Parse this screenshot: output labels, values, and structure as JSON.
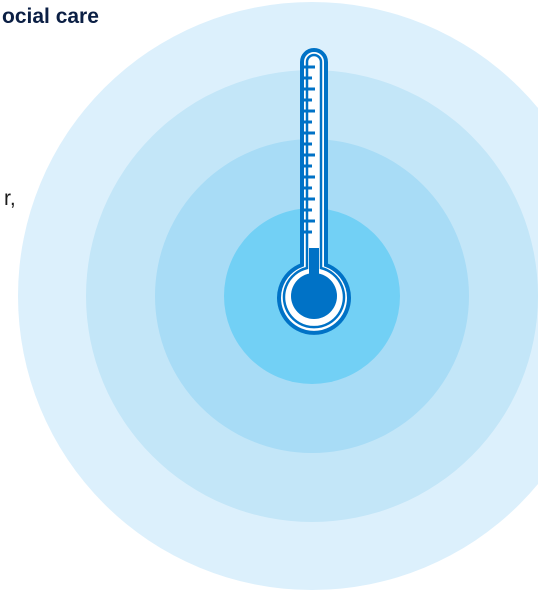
{
  "page": {
    "heading_fragment": "ocial care",
    "body_fragment": "r,"
  },
  "illustration": {
    "icon": "thermometer-icon",
    "colors": {
      "ring_outer": "#dcf0fc",
      "ring_2": "#c3e6f8",
      "ring_3": "#a8dcf6",
      "ring_inner": "#72d0f5",
      "thermometer_stroke": "#0072c6",
      "thermometer_fill": "#0072c6"
    }
  }
}
